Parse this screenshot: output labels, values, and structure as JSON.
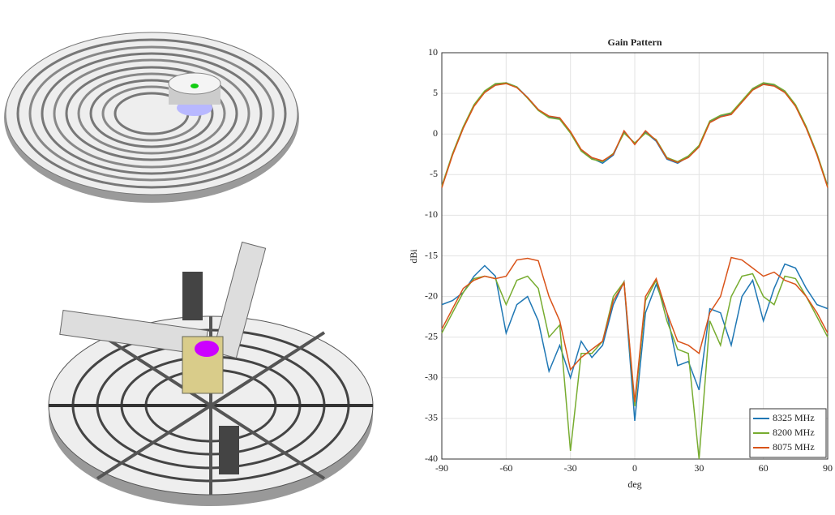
{
  "chart_data": {
    "type": "line",
    "title": "Gain Pattern",
    "x_label": "deg",
    "y_label": "dBi",
    "x": [
      -90,
      -85,
      -80,
      -75,
      -70,
      -65,
      -60,
      -55,
      -50,
      -45,
      -40,
      -35,
      -30,
      -25,
      -20,
      -15,
      -10,
      -5,
      0,
      5,
      10,
      15,
      20,
      25,
      30,
      35,
      40,
      45,
      50,
      55,
      60,
      65,
      70,
      75,
      80,
      85,
      90
    ],
    "series": [
      {
        "name": "8325 MHz",
        "color": "#1f77b4",
        "values": [
          -6.5,
          -2.5,
          0.8,
          3.5,
          5.2,
          6.1,
          6.3,
          5.8,
          4.5,
          3,
          2.1,
          1.9,
          0.2,
          -2,
          -3,
          -3.6,
          -2.6,
          0.3,
          -1.2,
          0.2,
          -0.9,
          -3.1,
          -3.6,
          -2.8,
          -1.5,
          1.5,
          2.2,
          2.5,
          4,
          5.5,
          6.2,
          6,
          5.2,
          3.5,
          0.8,
          -2.5,
          -6.5
        ],
        "cross_values": [
          -21,
          -20.5,
          -19.5,
          -17.5,
          -16.2,
          -17.5,
          -24.5,
          -21,
          -20,
          -23,
          -29.2,
          -26,
          -30,
          -25.5,
          -27.5,
          -26,
          -21,
          -18.2,
          -35.3,
          -22,
          -18.5,
          -22,
          -28.5,
          -28,
          -31.5,
          -21.5,
          -22,
          -26,
          -20,
          -18,
          -23,
          -19,
          -16,
          -16.5,
          -19,
          -21,
          -21.5
        ]
      },
      {
        "name": "8200 MHz",
        "color": "#77ac30",
        "values": [
          -6.4,
          -2.4,
          0.9,
          3.6,
          5.3,
          6.2,
          6.3,
          5.8,
          4.4,
          2.9,
          2,
          1.8,
          0.1,
          -2.1,
          -3.1,
          -3.4,
          -2.4,
          0.1,
          -1.1,
          0.1,
          -0.7,
          -2.9,
          -3.4,
          -2.7,
          -1.4,
          1.6,
          2.3,
          2.6,
          4.1,
          5.6,
          6.3,
          6.1,
          5.3,
          3.6,
          0.9,
          -2.4,
          -6.4
        ],
        "cross_values": [
          -24.5,
          -22,
          -19.5,
          -17.8,
          -17.5,
          -17.8,
          -21,
          -18,
          -17.5,
          -19,
          -25,
          -23.5,
          -39,
          -27,
          -27,
          -25.5,
          -20,
          -18.2,
          -33.5,
          -20.5,
          -18,
          -23,
          -26.5,
          -27,
          -40,
          -23,
          -26,
          -20,
          -17.5,
          -17.2,
          -20,
          -21,
          -17.5,
          -17.8,
          -20,
          -22.5,
          -25
        ]
      },
      {
        "name": "8075 MHz",
        "color": "#d95319",
        "values": [
          -6.6,
          -2.6,
          0.7,
          3.4,
          5.1,
          6,
          6.2,
          5.7,
          4.5,
          3,
          2.2,
          2,
          0.3,
          -1.9,
          -2.9,
          -3.3,
          -2.5,
          0.4,
          -1.3,
          0.4,
          -0.8,
          -3,
          -3.5,
          -2.9,
          -1.6,
          1.4,
          2.1,
          2.4,
          3.9,
          5.4,
          6.1,
          5.9,
          5.1,
          3.4,
          0.7,
          -2.6,
          -6.6
        ],
        "cross_values": [
          -24,
          -21.5,
          -19,
          -18,
          -17.5,
          -17.8,
          -17.5,
          -15.5,
          -15.3,
          -15.6,
          -20,
          -23,
          -29,
          -27.5,
          -26.5,
          -25.5,
          -20.5,
          -18.3,
          -33,
          -20,
          -17.8,
          -22,
          -25.5,
          -26,
          -27,
          -22,
          -20,
          -15.2,
          -15.5,
          -16.5,
          -17.5,
          -17,
          -18,
          -18.5,
          -20,
          -22,
          -24.5
        ]
      }
    ],
    "xlim": [
      -90,
      90
    ],
    "xticks": [
      -90,
      -60,
      -30,
      0,
      30,
      60,
      90
    ],
    "ylim": [
      -40,
      10
    ],
    "yticks": [
      -40,
      -35,
      -30,
      -25,
      -20,
      -15,
      -10,
      -5,
      0,
      5,
      10
    ],
    "grid": true,
    "legend": "lower right"
  }
}
